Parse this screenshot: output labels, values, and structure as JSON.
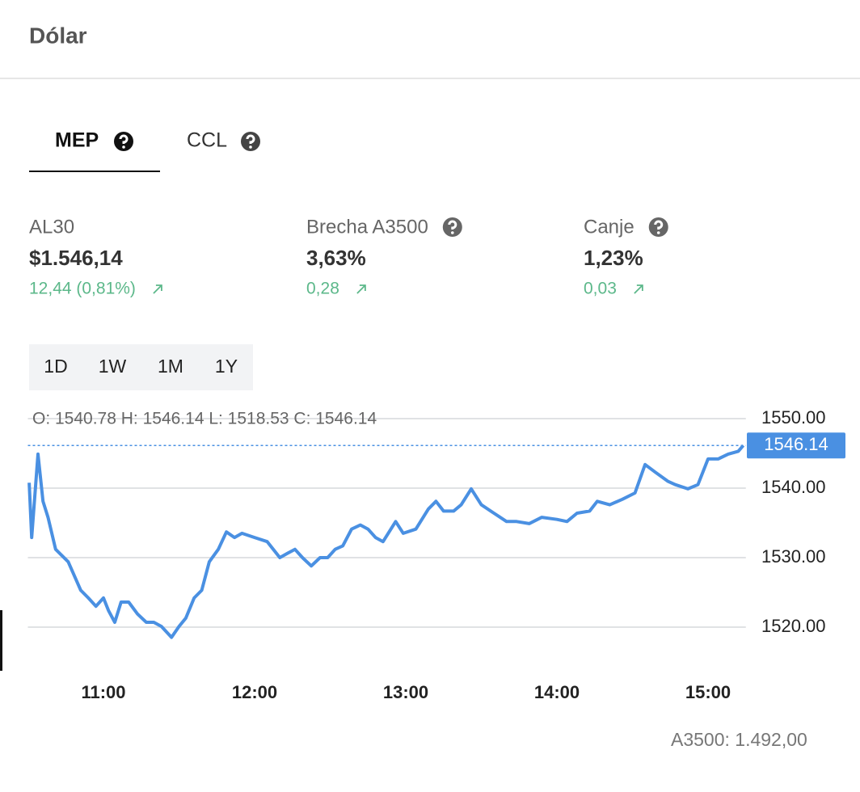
{
  "header": {
    "title": "Dólar"
  },
  "tabs": [
    "MEP",
    "CCL"
  ],
  "stats": [
    {
      "label": "AL30",
      "value": "$1.546,14",
      "change": "12,44 (0,81%)"
    },
    {
      "label": "Brecha A3500",
      "value": "3,63%",
      "change": "0,28"
    },
    {
      "label": "Canje",
      "value": "1,23%",
      "change": "0,03"
    }
  ],
  "ranges": [
    "1D",
    "1W",
    "1M",
    "1Y"
  ],
  "chart_data": {
    "type": "line",
    "ohlc_label": "O: 1540.78 H: 1546.14 L: 1518.53 C: 1546.14",
    "color": "#4a90e2",
    "grid": true,
    "x": [
      630.5,
      631.5,
      634,
      636,
      638,
      641,
      646,
      651,
      654,
      657,
      660,
      662,
      664.5,
      667,
      670,
      673.5,
      677,
      680,
      683,
      687,
      690,
      692.7,
      696,
      699,
      702,
      705.6,
      708.8,
      712,
      715,
      720,
      725,
      730,
      733,
      736,
      739,
      742.5,
      746,
      749,
      752,
      755,
      758.5,
      762,
      765,
      768,
      771,
      776,
      779,
      784,
      789,
      792,
      795,
      799,
      802,
      806,
      810,
      815,
      820,
      824,
      829,
      834,
      840,
      844,
      848,
      853,
      856,
      861,
      866,
      871,
      875,
      879,
      884,
      887,
      892,
      896,
      900,
      904,
      908,
      912,
      914
    ],
    "values": [
      1540.78,
      1532.9,
      1544.9,
      1538.1,
      1535.8,
      1531.2,
      1529.4,
      1525.3,
      1524.2,
      1523.0,
      1524.2,
      1522.4,
      1520.7,
      1523.6,
      1523.6,
      1521.9,
      1520.7,
      1520.7,
      1520.1,
      1518.53,
      1520.1,
      1521.3,
      1524.2,
      1525.3,
      1529.4,
      1531.2,
      1533.7,
      1532.9,
      1533.5,
      1532.9,
      1532.3,
      1530.0,
      1530.6,
      1531.2,
      1530.0,
      1528.8,
      1530.0,
      1530.0,
      1531.2,
      1531.7,
      1534.1,
      1534.7,
      1534.1,
      1532.9,
      1532.3,
      1535.2,
      1533.5,
      1534.1,
      1537.0,
      1538.1,
      1536.7,
      1536.7,
      1537.6,
      1539.9,
      1537.6,
      1536.4,
      1535.2,
      1535.2,
      1534.9,
      1535.8,
      1535.5,
      1535.2,
      1536.4,
      1536.7,
      1538.1,
      1537.6,
      1538.4,
      1539.3,
      1543.4,
      1542.3,
      1541.0,
      1540.5,
      1539.9,
      1540.5,
      1544.2,
      1544.2,
      1544.9,
      1545.3,
      1546.14
    ],
    "xlim": [
      630,
      915
    ],
    "ylim": [
      1517,
      1552
    ],
    "xticks": [
      {
        "value": 660,
        "label": "11:00"
      },
      {
        "value": 720,
        "label": "12:00"
      },
      {
        "value": 780,
        "label": "13:00"
      },
      {
        "value": 840,
        "label": "14:00"
      },
      {
        "value": 900,
        "label": "15:00"
      }
    ],
    "yticks": [
      {
        "value": 1520,
        "label": "1520.00"
      },
      {
        "value": 1530,
        "label": "1530.00"
      },
      {
        "value": 1540,
        "label": "1540.00"
      },
      {
        "value": 1550,
        "label": "1550.00"
      }
    ]
  },
  "footer": "A3500: 1.492,00"
}
